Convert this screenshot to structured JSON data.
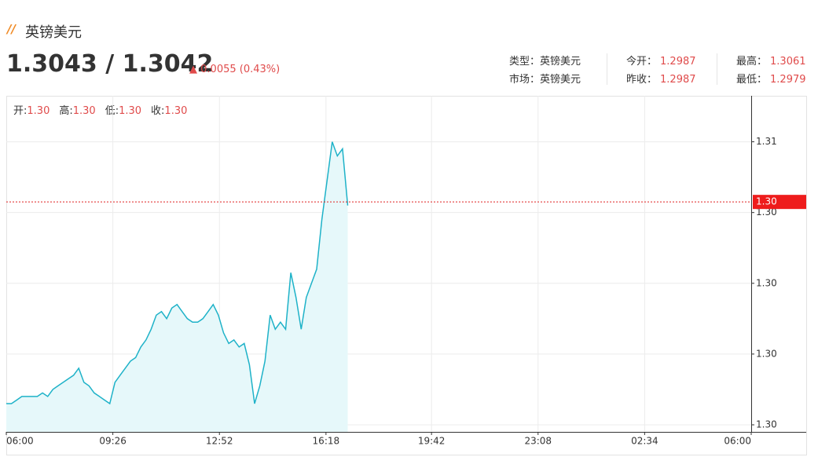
{
  "header": {
    "title": "英镑美元",
    "price": "1.3043 / 1.3042",
    "change": "0.0055 (0.43%)",
    "info": [
      [
        {
          "label": "类型：",
          "value": "英镑美元"
        },
        {
          "label": "今开：",
          "value": "1.2987"
        },
        {
          "label": "最高：",
          "value": "1.3061"
        }
      ],
      [
        {
          "label": "市场：",
          "value": "英镑美元"
        },
        {
          "label": "昨收：",
          "value": "1.2987"
        },
        {
          "label": "最低：",
          "value": "1.2979"
        }
      ]
    ]
  },
  "chart_data": {
    "type": "line",
    "ohlc": [
      {
        "label": "开:",
        "value": "1.30"
      },
      {
        "label": "高:",
        "value": "1.30"
      },
      {
        "label": "低:",
        "value": "1.30"
      },
      {
        "label": "收:",
        "value": "1.30"
      }
    ],
    "x": [
      "06:00",
      "06:10",
      "06:20",
      "06:30",
      "06:40",
      "06:50",
      "07:00",
      "07:10",
      "07:20",
      "07:30",
      "07:40",
      "07:50",
      "08:00",
      "08:10",
      "08:20",
      "08:30",
      "08:40",
      "08:50",
      "09:00",
      "09:10",
      "09:20",
      "09:30",
      "09:40",
      "09:50",
      "10:00",
      "10:10",
      "10:20",
      "10:30",
      "10:40",
      "10:50",
      "11:00",
      "11:10",
      "11:20",
      "11:30",
      "11:40",
      "11:50",
      "12:00",
      "12:10",
      "12:20",
      "12:30",
      "12:40",
      "12:50",
      "13:00",
      "13:10",
      "13:20",
      "13:30",
      "13:40",
      "13:50",
      "14:00",
      "14:10",
      "14:20",
      "14:30",
      "14:40",
      "14:50",
      "15:00",
      "15:10",
      "15:20",
      "15:30",
      "15:40",
      "15:50",
      "16:00",
      "16:10",
      "16:20",
      "16:30",
      "16:40",
      "16:50",
      "17:00"
    ],
    "series": [
      {
        "name": "英镑美元",
        "color": "#1eb2c8",
        "values": [
          1.2986,
          1.2986,
          1.2987,
          1.2988,
          1.2988,
          1.2988,
          1.2988,
          1.2989,
          1.2988,
          1.299,
          1.2991,
          1.2992,
          1.2993,
          1.2994,
          1.2996,
          1.2992,
          1.2991,
          1.2989,
          1.2988,
          1.2987,
          1.2986,
          1.2992,
          1.2994,
          1.2996,
          1.2998,
          1.2999,
          1.3002,
          1.3004,
          1.3007,
          1.3011,
          1.3012,
          1.301,
          1.3013,
          1.3014,
          1.3012,
          1.301,
          1.3009,
          1.3009,
          1.301,
          1.3012,
          1.3014,
          1.3011,
          1.3006,
          1.3003,
          1.3004,
          1.3002,
          1.3003,
          1.2997,
          1.2986,
          1.2991,
          1.2998,
          1.3011,
          1.3007,
          1.3009,
          1.3007,
          1.3023,
          1.3016,
          1.3007,
          1.3016,
          1.302,
          1.3024,
          1.3038,
          1.3049,
          1.306,
          1.3056,
          1.3058,
          1.3042
        ]
      }
    ],
    "current": {
      "value": 1.3043,
      "label": "1.30"
    },
    "xlim": [
      "06:00",
      "06:00"
    ],
    "xticks": [
      "06:00",
      "09:26",
      "12:52",
      "16:18",
      "19:42",
      "23:08",
      "02:34",
      "06:00"
    ],
    "ylim": [
      1.2978,
      1.3073
    ],
    "yticks": [
      {
        "value": 1.306,
        "label": "1.31"
      },
      {
        "value": 1.304,
        "label": "1.30"
      },
      {
        "value": 1.302,
        "label": "1.30"
      },
      {
        "value": 1.3,
        "label": "1.30"
      },
      {
        "value": 1.298,
        "label": "1.30"
      }
    ],
    "grid": true
  }
}
